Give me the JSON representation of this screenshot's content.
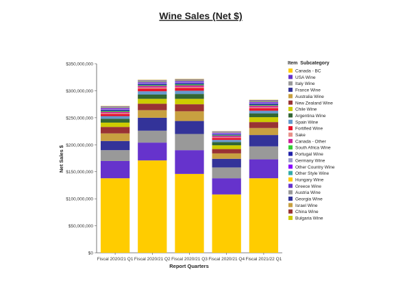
{
  "chart_data": {
    "type": "bar",
    "stacked": true,
    "title": "Wine Sales (Net $)",
    "xlabel": "Report Quarters",
    "ylabel": "Net Sales $",
    "ylim": [
      0,
      350000000
    ],
    "yticks": [
      0,
      50000000,
      100000000,
      150000000,
      200000000,
      250000000,
      300000000,
      350000000
    ],
    "ytick_labels": [
      "$0",
      "$50,000,000",
      "$100,000,000",
      "$150,000,000",
      "$200,000,000",
      "$250,000,000",
      "$300,000,000",
      "$350,000,000"
    ],
    "grid": false,
    "legend_title": "Item  Subcategory",
    "legend_position": "right",
    "categories": [
      "Fiscal 2020/21 Q1",
      "Fiscal 2020/21 Q2",
      "Fiscal 2020/21 Q3",
      "Fiscal 2020/21 Q4",
      "Fiscal 2021/22 Q1"
    ],
    "series": [
      {
        "name": "Canada - BC",
        "color": "#FFCC00",
        "values": [
          138000000,
          171000000,
          146000000,
          108000000,
          138000000
        ]
      },
      {
        "name": "USA Wine",
        "color": "#6633CC",
        "values": [
          32000000,
          33000000,
          44000000,
          30000000,
          35000000
        ]
      },
      {
        "name": "Italy Wine",
        "color": "#999999",
        "values": [
          20000000,
          22000000,
          30000000,
          20000000,
          24000000
        ]
      },
      {
        "name": "France Wine",
        "color": "#333399",
        "values": [
          17000000,
          24000000,
          24000000,
          16000000,
          21000000
        ]
      },
      {
        "name": "Australia Wine",
        "color": "#C8A040",
        "values": [
          14000000,
          14000000,
          18000000,
          10000000,
          13000000
        ]
      },
      {
        "name": "New Zealand Wine",
        "color": "#993333",
        "values": [
          12000000,
          12000000,
          13000000,
          8000000,
          11000000
        ]
      },
      {
        "name": "Chile Wine",
        "color": "#CCCC00",
        "values": [
          8000000,
          9000000,
          10000000,
          7000000,
          9000000
        ]
      },
      {
        "name": "Argentina Wine",
        "color": "#336633",
        "values": [
          7000000,
          8000000,
          9000000,
          6000000,
          7000000
        ]
      },
      {
        "name": "Spain Wine",
        "color": "#6699CC",
        "values": [
          5000000,
          6000000,
          6000000,
          4000000,
          5000000
        ]
      },
      {
        "name": "Fortified Wine",
        "color": "#E8132B",
        "values": [
          4000000,
          5000000,
          5000000,
          3500000,
          4500000
        ]
      },
      {
        "name": "Sake",
        "color": "#E89088",
        "values": [
          1500000,
          2000000,
          2000000,
          1500000,
          1800000
        ]
      },
      {
        "name": "Canada - Other",
        "color": "#CC2299",
        "values": [
          2500000,
          3000000,
          3000000,
          2500000,
          3000000
        ]
      },
      {
        "name": "South Africa Wine",
        "color": "#33CC33",
        "values": [
          1500000,
          1500000,
          1800000,
          1200000,
          1500000
        ]
      },
      {
        "name": "Portugal Wine",
        "color": "#2222AA",
        "values": [
          2000000,
          2000000,
          2200000,
          1500000,
          2000000
        ]
      },
      {
        "name": "Germany Wine",
        "color": "#9999CC",
        "values": [
          1500000,
          1500000,
          1700000,
          1200000,
          1500000
        ]
      },
      {
        "name": "Other Country Wine",
        "color": "#8800FF",
        "values": [
          1500000,
          1500000,
          1500000,
          1200000,
          1500000
        ]
      },
      {
        "name": "Other Style Wine",
        "color": "#33AAAA",
        "values": [
          800000,
          900000,
          900000,
          700000,
          800000
        ]
      },
      {
        "name": "Hungary Wine",
        "color": "#FFCC00",
        "values": [
          700000,
          800000,
          800000,
          600000,
          700000
        ]
      },
      {
        "name": "Greece Wine",
        "color": "#6633CC",
        "values": [
          700000,
          800000,
          800000,
          600000,
          700000
        ]
      },
      {
        "name": "Austria Wine",
        "color": "#999999",
        "values": [
          700000,
          800000,
          800000,
          600000,
          700000
        ]
      },
      {
        "name": "Georgia Wine",
        "color": "#333399",
        "values": [
          400000,
          500000,
          500000,
          400000,
          500000
        ]
      },
      {
        "name": "Israel Wine",
        "color": "#C8A040",
        "values": [
          400000,
          400000,
          400000,
          300000,
          400000
        ]
      },
      {
        "name": "China Wine",
        "color": "#993333",
        "values": [
          300000,
          300000,
          300000,
          200000,
          300000
        ]
      },
      {
        "name": "Bulgaria Wine",
        "color": "#CCCC00",
        "values": [
          300000,
          300000,
          300000,
          200000,
          300000
        ]
      }
    ]
  }
}
